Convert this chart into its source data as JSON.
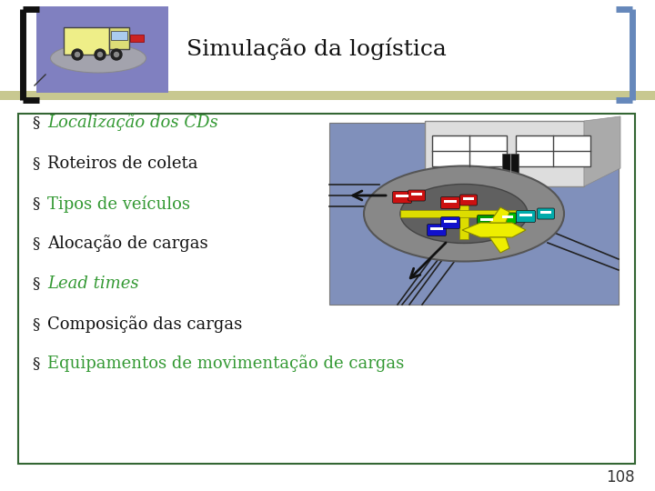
{
  "title": "Simulação da logística",
  "background_color": "#ffffff",
  "header_box_color": "#8080c0",
  "left_bracket_color": "#111111",
  "right_bracket_color": "#6688bb",
  "bullet_items": [
    {
      "text": "Localização dos CDs",
      "color": "#339933",
      "style": "italic"
    },
    {
      "text": "Roteiros de coleta",
      "color": "#111111",
      "style": "normal"
    },
    {
      "text": "Tipos de veículos",
      "color": "#339933",
      "style": "normal"
    },
    {
      "text": "Alocação de cargas",
      "color": "#111111",
      "style": "normal"
    },
    {
      "text": "Lead times",
      "color": "#339933",
      "style": "italic"
    },
    {
      "text": "Composição das cargas",
      "color": "#111111",
      "style": "normal"
    },
    {
      "text": "Equipamentos de movimentação de cargas",
      "color": "#339933",
      "style": "normal"
    }
  ],
  "content_box_border": "#336633",
  "page_number": "108",
  "title_color": "#111111",
  "title_fontsize": 18,
  "bullet_fontsize": 13,
  "page_num_fontsize": 12,
  "header_stripe_color": "#c8c890",
  "img_bg_color": "#8899cc",
  "img_road_color": "#888888",
  "img_inner_color": "#666666"
}
